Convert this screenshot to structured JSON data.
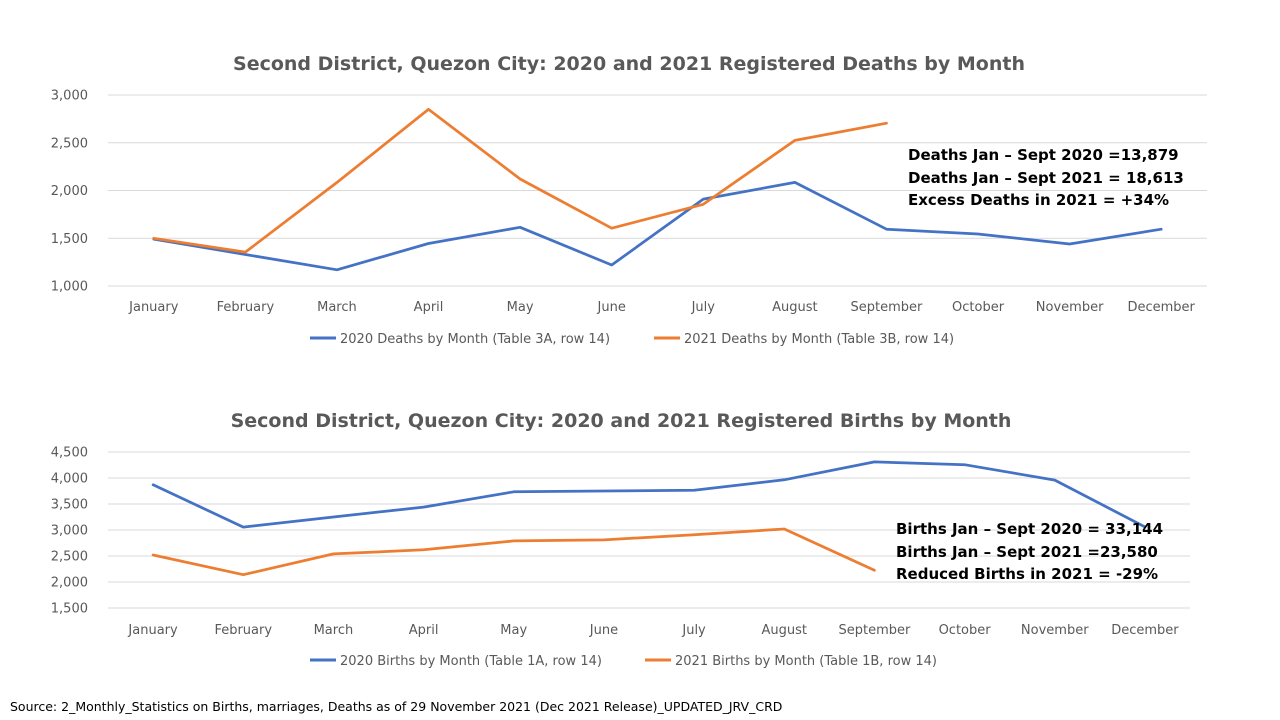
{
  "colors": {
    "series_2020": "#4472c4",
    "series_2021": "#ed7d31",
    "grid": "#d9d9d9",
    "text": "#595959"
  },
  "chart_data": [
    {
      "type": "line",
      "title": "Second District, Quezon City: 2020 and 2021 Registered Deaths by Month",
      "categories": [
        "January",
        "February",
        "March",
        "April",
        "May",
        "June",
        "July",
        "August",
        "September",
        "October",
        "November",
        "December"
      ],
      "ylim": [
        1000,
        3000
      ],
      "yticks": [
        1000,
        1500,
        2000,
        2500,
        3000
      ],
      "ytick_labels": [
        "1,000",
        "1,500",
        "2,000",
        "2,500",
        "3,000"
      ],
      "grid": true,
      "legend_position": "bottom",
      "series": [
        {
          "name": "2020 Deaths by Month (Table 3A, row 14)",
          "color": "#4472c4",
          "values": [
            1490,
            1330,
            1170,
            1445,
            1615,
            1220,
            1910,
            2085,
            1595,
            1545,
            1440,
            1595
          ]
        },
        {
          "name": "2021 Deaths by Month (Table 3B, row 14)",
          "color": "#ed7d31",
          "values": [
            1500,
            1355,
            2085,
            2850,
            2120,
            1605,
            1855,
            2525,
            2705,
            null,
            null,
            null
          ]
        }
      ],
      "annotations": [
        "Deaths Jan – Sept 2020 =13,879",
        "Deaths Jan – Sept 2021 = 18,613",
        "Excess Deaths in 2021 = +34%"
      ]
    },
    {
      "type": "line",
      "title": "Second District, Quezon City: 2020 and 2021 Registered Births by Month",
      "categories": [
        "January",
        "February",
        "March",
        "April",
        "May",
        "June",
        "July",
        "August",
        "September",
        "October",
        "November",
        "December"
      ],
      "ylim": [
        1500,
        4500
      ],
      "yticks": [
        1500,
        2000,
        2500,
        3000,
        3500,
        4000,
        4500
      ],
      "ytick_labels": [
        "1,500",
        "2,000",
        "2,500",
        "3,000",
        "3,500",
        "4,000",
        "4,500"
      ],
      "grid": true,
      "legend_position": "bottom",
      "series": [
        {
          "name": "2020 Births by Month (Table 1A, row 14)",
          "color": "#4472c4",
          "values": [
            3870,
            3055,
            3250,
            3440,
            3735,
            3750,
            3765,
            3965,
            4310,
            4255,
            3960,
            3060
          ]
        },
        {
          "name": "2021 Births by Month (Table 1B, row 14)",
          "color": "#ed7d31",
          "values": [
            2520,
            2140,
            2540,
            2620,
            2790,
            2810,
            2910,
            3020,
            2225,
            null,
            null,
            null
          ]
        }
      ],
      "annotations": [
        "Births Jan – Sept 2020 = 33,144",
        "Births Jan – Sept 2021 =23,580",
        "Reduced Births in 2021 = -29%"
      ]
    }
  ],
  "source": "Source: 2_Monthly_Statistics on Births, marriages, Deaths as of 29 November 2021 (Dec 2021 Release)_UPDATED_JRV_CRD"
}
